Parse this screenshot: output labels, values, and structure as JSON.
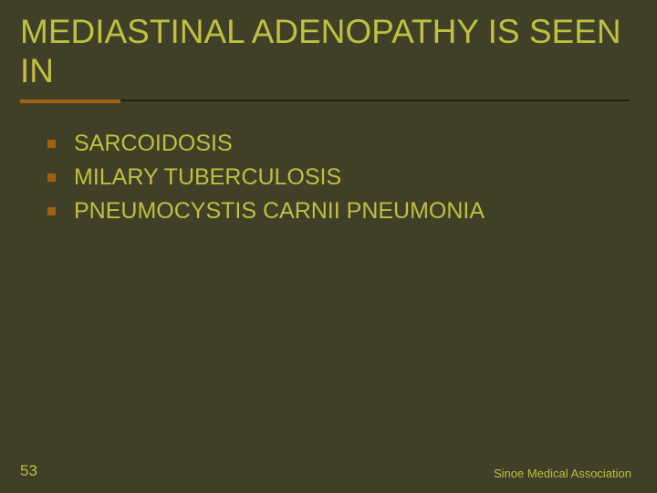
{
  "slide": {
    "title": "MEDIASTINAL ADENOPATHY IS SEEN IN",
    "bullets": [
      "SARCOIDOSIS",
      "MILARY TUBERCULOSIS",
      "PNEUMOCYSTIS CARNII PNEUMONIA"
    ],
    "slide_number": "53",
    "footer": "Sinoe Medical Association"
  },
  "style": {
    "background_color": "#404028",
    "text_color": "#bfbf40",
    "accent_color": "#a06010",
    "divider_dark": "#1f1f10",
    "title_fontsize": 37,
    "bullet_fontsize": 25,
    "footer_fontsize": 13,
    "slidenum_fontsize": 17,
    "bullet_marker_size": 9,
    "font_family": "Arial"
  }
}
